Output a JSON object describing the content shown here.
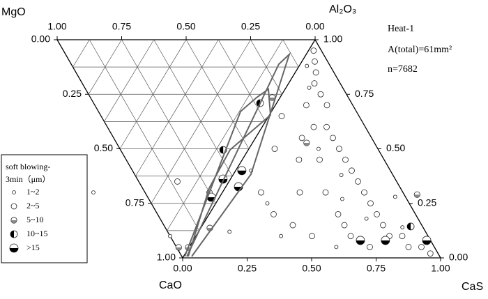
{
  "chart_data": {
    "type": "quaternary-scatter",
    "vertex_labels": [
      "MgO",
      "Al₂O₃",
      "CaO",
      "CaS"
    ],
    "annotations": [
      "Heat-1",
      "A(total)=61mm²",
      "n=7682"
    ],
    "legend_title": [
      "soft blowing-",
      "3min（μm）"
    ],
    "grid_divisions": 8,
    "top_ticks": [
      {
        "value": 1,
        "label": "1.00"
      },
      {
        "value": 0.75,
        "label": "0.75"
      },
      {
        "value": 0.5,
        "label": "0.50"
      },
      {
        "value": 0.25,
        "label": "0.25"
      },
      {
        "value": 0,
        "label": "0.00"
      }
    ],
    "left_ticks": [
      {
        "value": 0,
        "label": "0.00"
      },
      {
        "value": 0.25,
        "label": "0.25"
      },
      {
        "value": 0.5,
        "label": "0.50"
      },
      {
        "value": 0.75,
        "label": "0.75"
      },
      {
        "value": 1,
        "label": "1.00"
      }
    ],
    "bottom_ticks": [
      {
        "value": 0,
        "label": "0.00"
      },
      {
        "value": 0.25,
        "label": "0.25"
      },
      {
        "value": 0.5,
        "label": "0.50"
      },
      {
        "value": 0.75,
        "label": "0.75"
      },
      {
        "value": 1,
        "label": "1.00"
      }
    ],
    "right_ticks": [
      {
        "value": 1,
        "label": "1.00"
      },
      {
        "value": 0.75,
        "label": "0.75"
      },
      {
        "value": 0.5,
        "label": "0.50"
      },
      {
        "value": 0.25,
        "label": "0.25"
      },
      {
        "value": 0,
        "label": "0.00"
      }
    ],
    "series": [
      {
        "name": "1~2",
        "color": "#ffffff",
        "x": [
          0.03,
          0.09,
          0.27,
          0.42,
          0.62,
          0.78,
          0.33,
          0.12,
          0.48,
          0.68,
          0.2,
          0.57,
          -0.5,
          -0.1,
          0.06
        ],
        "y": [
          0.88,
          0.78,
          0.5,
          0.38,
          0.18,
          0.14,
          0.1,
          0.12,
          0.27,
          0.28,
          0.25,
          0.05,
          0.3,
          0.1,
          0.4
        ]
      },
      {
        "name": "2~5",
        "color": "#ffffff",
        "x": [
          0.05,
          0.08,
          0.1,
          0.15,
          0.2,
          0.12,
          0.25,
          0.3,
          0.2,
          0.35,
          0.4,
          0.45,
          0.3,
          0.5,
          0.55,
          0.6,
          0.4,
          0.65,
          0.7,
          0.75,
          0.5,
          0.8,
          0.85,
          0.9,
          0.6,
          0.35,
          0.45,
          0.25,
          0.15,
          0.1,
          0.05,
          0.02,
          0.18,
          0.22,
          0.55,
          0.7,
          0.95,
          0.3,
          -0.05,
          -0.2
        ],
        "y": [
          0.9,
          0.85,
          0.8,
          0.75,
          0.7,
          0.7,
          0.6,
          0.55,
          0.6,
          0.5,
          0.45,
          0.4,
          0.45,
          0.35,
          0.3,
          0.25,
          0.3,
          0.2,
          0.15,
          0.1,
          0.2,
          0.1,
          0.05,
          0.05,
          0.1,
          0.15,
          0.1,
          0.2,
          0.3,
          0.5,
          0.65,
          0.95,
          0.55,
          0.45,
          0.15,
          0.05,
          0.02,
          0.3,
          0.3,
          0.35
        ]
      },
      {
        "name": "5~10",
        "color": "#888888",
        "x": [
          -0.003,
          -0.04,
          0.035,
          -0.03,
          0.21,
          0.76
        ],
        "y": [
          0.048,
          0.048,
          0.137,
          0.735,
          0.527,
          0.29
        ]
      },
      {
        "name": "10~15",
        "color": "#000000",
        "x": [
          -0.097,
          -0.064,
          0.81
        ],
        "y": [
          0.495,
          0.709,
          0.144
        ]
      },
      {
        "name": ">15",
        "color": "#000000",
        "x": [
          -0.029,
          0.024,
          0.049,
          -0.032,
          0.648,
          0.745,
          0.905
        ],
        "y": [
          0.361,
          0.4,
          0.326,
          0.278,
          0.08,
          0.08,
          0.08
        ]
      }
    ]
  }
}
